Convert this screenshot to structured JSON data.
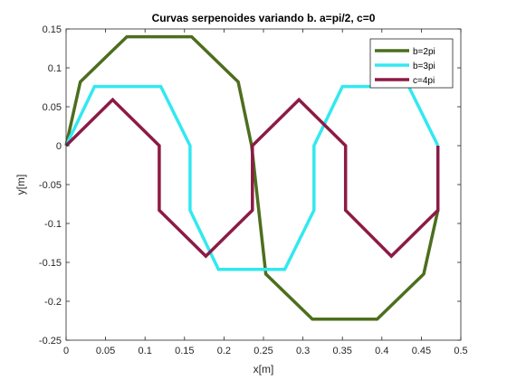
{
  "chart_data": {
    "type": "line",
    "title": "Curvas serpenoides variando b. a=pi/2, c=0",
    "xlabel": "x[m]",
    "ylabel": "y[m]",
    "xlim": [
      0,
      0.5
    ],
    "ylim": [
      -0.25,
      0.15
    ],
    "xticks": [
      0,
      0.05,
      0.1,
      0.15,
      0.2,
      0.25,
      0.3,
      0.35,
      0.4,
      0.45,
      0.5
    ],
    "yticks": [
      -0.25,
      -0.2,
      -0.15,
      -0.1,
      -0.05,
      0,
      0.05,
      0.1,
      0.15
    ],
    "xtick_labels": [
      "0",
      "0.05",
      "0.1",
      "0.15",
      "0.2",
      "0.25",
      "0.3",
      "0.35",
      "0.4",
      "0.45",
      "0.5"
    ],
    "ytick_labels": [
      "-0.25",
      "-0.2",
      "-0.15",
      "-0.1",
      "-0.05",
      "0",
      "0.05",
      "0.1",
      "0.15"
    ],
    "grid": false,
    "legend_position": "top-right",
    "series": [
      {
        "name": "b=2pi",
        "color": "#4d6e1e",
        "x": [
          0,
          0.018,
          0.077,
          0.159,
          0.218,
          0.235,
          0.253,
          0.312,
          0.394,
          0.453,
          0.471
        ],
        "y": [
          0,
          0.082,
          0.14,
          0.14,
          0.082,
          0,
          -0.165,
          -0.223,
          -0.223,
          -0.165,
          -0.083
        ]
      },
      {
        "name": "b=3pi",
        "color": "#33e8f0",
        "x": [
          0,
          0.036,
          0.12,
          0.157,
          0.157,
          0.193,
          0.277,
          0.314,
          0.314,
          0.35,
          0.434,
          0.471
        ],
        "y": [
          0,
          0.076,
          0.076,
          0,
          -0.083,
          -0.159,
          -0.159,
          -0.083,
          0,
          0.076,
          0.076,
          0
        ]
      },
      {
        "name": "c=4pi",
        "color": "#8c1b45",
        "x": [
          0,
          0.059,
          0.118,
          0.118,
          0.177,
          0.236,
          0.236,
          0.295,
          0.354,
          0.354,
          0.412,
          0.471,
          0.471
        ],
        "y": [
          0,
          0.059,
          0,
          -0.083,
          -0.142,
          -0.083,
          0,
          0.059,
          0,
          -0.083,
          -0.142,
          -0.083,
          0
        ]
      }
    ]
  }
}
